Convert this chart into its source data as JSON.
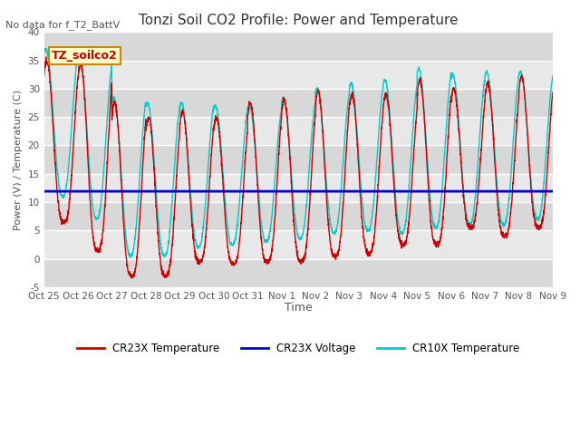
{
  "title": "Tonzi Soil CO2 Profile: Power and Temperature",
  "no_data_text": "No data for f_T2_BattV",
  "ylabel": "Power (V) / Temperature (C)",
  "xlabel": "Time",
  "ylim": [
    -5,
    40
  ],
  "xlim": [
    0,
    15
  ],
  "tick_labels": [
    "Oct 25",
    "Oct 26",
    "Oct 27",
    "Oct 28",
    "Oct 29",
    "Oct 30",
    "Oct 31",
    "Nov 1",
    "Nov 2",
    "Nov 3",
    "Nov 4",
    "Nov 5",
    "Nov 6",
    "Nov 7",
    "Nov 8",
    "Nov 9"
  ],
  "background_color": "#ffffff",
  "plot_bg_color": "#e0e0e0",
  "grid_color": "#ffffff",
  "voltage_value": 11.9,
  "legend_label_cr23x_temp": "CR23X Temperature",
  "legend_label_cr23x_volt": "CR23X Voltage",
  "legend_label_cr10x_temp": "CR10X Temperature",
  "legend_color_cr23x_temp": "#cc0000",
  "legend_color_cr23x_volt": "#0000cc",
  "legend_color_cr10x_temp": "#00cccc",
  "box_label": "TZ_soilco2",
  "box_facecolor": "#ffffcc",
  "box_edgecolor": "#cc8800",
  "box_textcolor": "#cc0000",
  "yticks": [
    -5,
    0,
    5,
    10,
    15,
    20,
    25,
    30,
    35,
    40
  ],
  "peak_cr23x": [
    35.0,
    34.5,
    27.5,
    25.0,
    26.0,
    25.0,
    27.5,
    28.0,
    29.5,
    29.0,
    29.0,
    31.5,
    30.0,
    31.0,
    32.0
  ],
  "peak_cr10x": [
    37.0,
    35.0,
    28.5,
    27.5,
    27.5,
    27.0,
    27.0,
    28.5,
    30.0,
    31.0,
    31.5,
    33.5,
    32.5,
    33.0,
    33.0
  ],
  "min_cr23x": [
    6.5,
    1.5,
    -3.0,
    -3.0,
    -0.5,
    -1.0,
    -0.5,
    -0.5,
    0.5,
    1.0,
    2.5,
    2.5,
    5.5,
    4.0,
    5.5
  ],
  "min_cr10x": [
    11.0,
    7.0,
    0.5,
    0.5,
    2.0,
    2.5,
    3.0,
    3.5,
    4.5,
    5.0,
    4.5,
    5.5,
    6.0,
    6.0,
    7.0
  ]
}
